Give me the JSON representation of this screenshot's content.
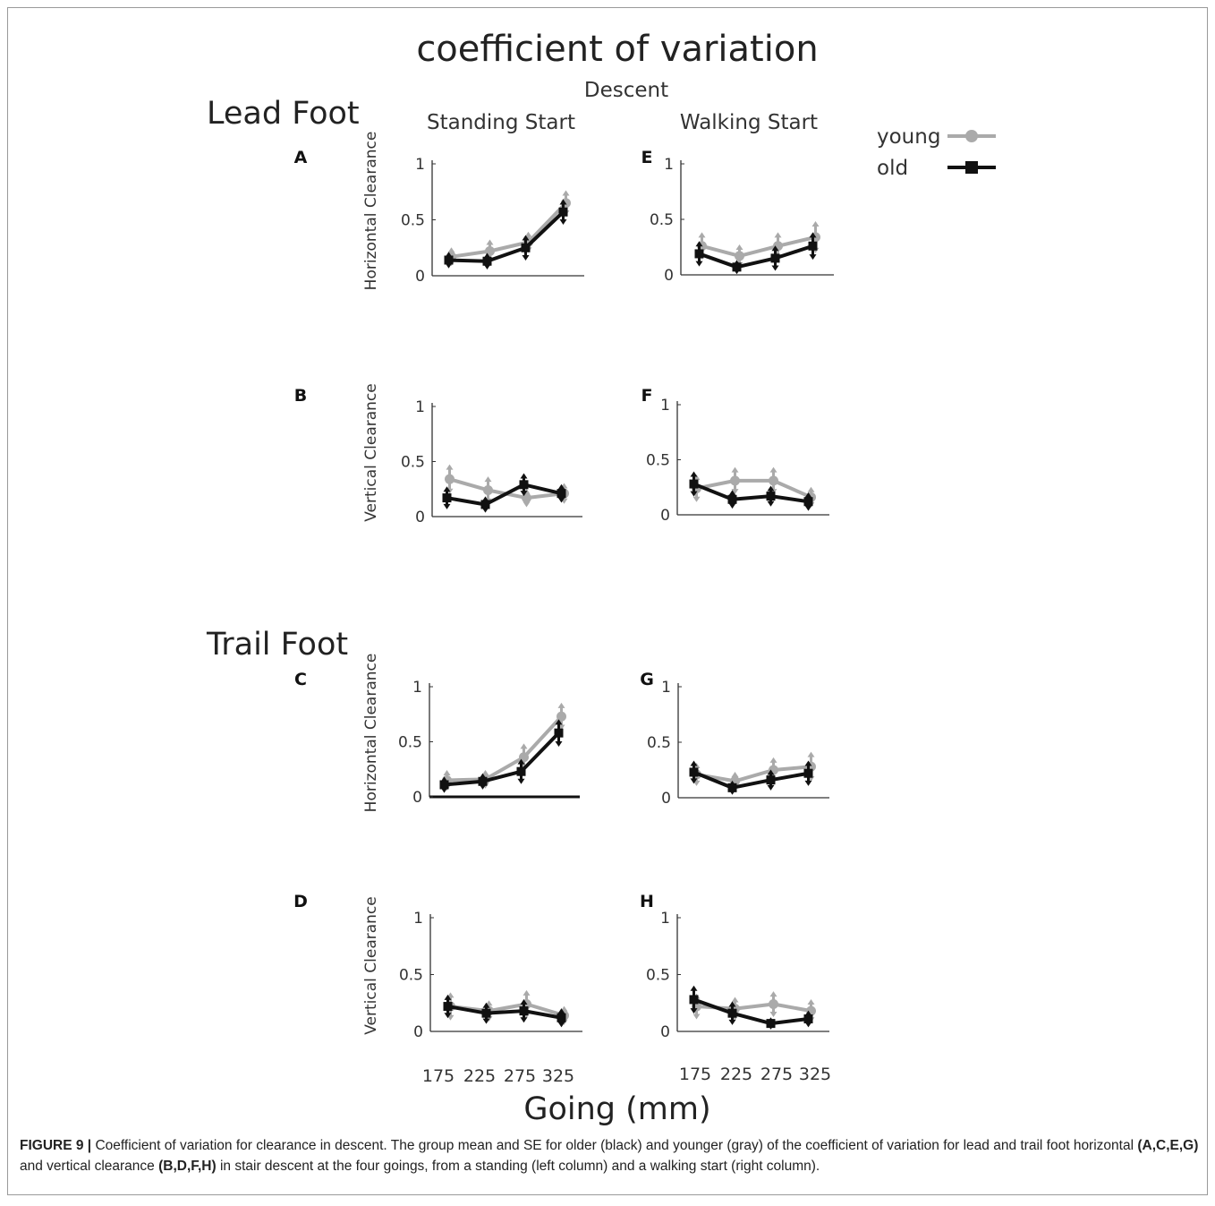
{
  "figure": {
    "main_title": "coefficient of variation",
    "condition": "Descent",
    "column_titles": [
      "Standing Start",
      "Walking Start"
    ],
    "section_titles": [
      "Lead Foot",
      "Trail Foot"
    ],
    "x_axis_label": "Going (mm)",
    "x_tick_labels": [
      "175",
      "225",
      "275",
      "325"
    ],
    "legend": {
      "young": "young",
      "old": "old"
    }
  },
  "colors": {
    "young": "#aaaaaa",
    "old": "#111111",
    "axis": "#333333"
  },
  "caption": {
    "figure_label": "FIGURE 9 |",
    "text_1": " Coefficient of variation for clearance in descent. The group mean and SE for older (black) and younger (gray) of the coefficient of variation for lead and trail foot horizontal ",
    "bold_1": "(A,C,E,G)",
    "text_2": " and vertical clearance ",
    "bold_2": "(B,D,F,H)",
    "text_3": " in stair descent at the four goings, from a standing (left column) and a walking start (right column)."
  },
  "chart_data": [
    {
      "panel": "A",
      "type": "line",
      "ylabel": "Horizontal Clearance",
      "x": [
        175,
        225,
        275,
        325
      ],
      "ylim": [
        0,
        1
      ],
      "yticks": [
        "0",
        "0.5",
        "1"
      ],
      "series": [
        {
          "name": "young",
          "values": [
            0.17,
            0.22,
            0.3,
            0.65
          ],
          "se": [
            0.06,
            0.08,
            0.07,
            0.09
          ]
        },
        {
          "name": "old",
          "values": [
            0.14,
            0.13,
            0.25,
            0.57
          ],
          "se": [
            0.05,
            0.05,
            0.09,
            0.09
          ]
        }
      ]
    },
    {
      "panel": "B",
      "type": "line",
      "ylabel": "Vertical Clearance",
      "x": [
        175,
        225,
        275,
        325
      ],
      "ylim": [
        0,
        1
      ],
      "yticks": [
        "0",
        "0.5",
        "1"
      ],
      "series": [
        {
          "name": "young",
          "values": [
            0.34,
            0.24,
            0.17,
            0.21
          ],
          "se": [
            0.11,
            0.1,
            0.06,
            0.07
          ]
        },
        {
          "name": "old",
          "values": [
            0.17,
            0.11,
            0.29,
            0.21
          ],
          "se": [
            0.08,
            0.05,
            0.08,
            0.06
          ]
        }
      ]
    },
    {
      "panel": "C",
      "type": "line",
      "ylabel": "Horizontal Clearance",
      "x": [
        175,
        225,
        275,
        325
      ],
      "ylim": [
        0,
        1
      ],
      "yticks": [
        "0",
        "0.5",
        "1"
      ],
      "series": [
        {
          "name": "young",
          "values": [
            0.15,
            0.16,
            0.36,
            0.73
          ],
          "se": [
            0.07,
            0.06,
            0.1,
            0.1
          ]
        },
        {
          "name": "old",
          "values": [
            0.11,
            0.14,
            0.23,
            0.58
          ],
          "se": [
            0.05,
            0.05,
            0.09,
            0.1
          ]
        }
      ]
    },
    {
      "panel": "D",
      "type": "line",
      "ylabel": "Vertical Clearance",
      "x": [
        175,
        225,
        275,
        325
      ],
      "ylim": [
        0,
        1
      ],
      "yticks": [
        "0",
        "0.5",
        "1"
      ],
      "series": [
        {
          "name": "young",
          "values": [
            0.22,
            0.18,
            0.24,
            0.14
          ],
          "se": [
            0.1,
            0.07,
            0.1,
            0.06
          ]
        },
        {
          "name": "old",
          "values": [
            0.22,
            0.16,
            0.18,
            0.12
          ],
          "se": [
            0.08,
            0.07,
            0.08,
            0.06
          ]
        }
      ]
    },
    {
      "panel": "E",
      "type": "line",
      "ylabel": "",
      "x": [
        175,
        225,
        275,
        325
      ],
      "ylim": [
        0,
        1
      ],
      "yticks": [
        "0",
        "0.5",
        "1"
      ],
      "series": [
        {
          "name": "young",
          "values": [
            0.26,
            0.17,
            0.26,
            0.34
          ],
          "se": [
            0.1,
            0.08,
            0.1,
            0.12
          ]
        },
        {
          "name": "old",
          "values": [
            0.19,
            0.07,
            0.15,
            0.26
          ],
          "se": [
            0.09,
            0.04,
            0.09,
            0.1
          ]
        }
      ]
    },
    {
      "panel": "F",
      "type": "line",
      "ylabel": "",
      "x": [
        175,
        225,
        275,
        325
      ],
      "ylim": [
        0,
        1
      ],
      "yticks": [
        "0",
        "0.5",
        "1"
      ],
      "series": [
        {
          "name": "young",
          "values": [
            0.24,
            0.31,
            0.31,
            0.16
          ],
          "se": [
            0.1,
            0.1,
            0.1,
            0.07
          ]
        },
        {
          "name": "old",
          "values": [
            0.28,
            0.14,
            0.17,
            0.12
          ],
          "se": [
            0.09,
            0.06,
            0.07,
            0.06
          ]
        }
      ]
    },
    {
      "panel": "G",
      "type": "line",
      "ylabel": "",
      "x": [
        175,
        225,
        275,
        325
      ],
      "ylim": [
        0,
        1
      ],
      "yticks": [
        "0",
        "0.5",
        "1"
      ],
      "series": [
        {
          "name": "young",
          "values": [
            0.21,
            0.15,
            0.25,
            0.28
          ],
          "se": [
            0.08,
            0.06,
            0.09,
            0.11
          ]
        },
        {
          "name": "old",
          "values": [
            0.23,
            0.09,
            0.16,
            0.22
          ],
          "se": [
            0.08,
            0.04,
            0.07,
            0.09
          ]
        }
      ]
    },
    {
      "panel": "H",
      "type": "line",
      "ylabel": "",
      "x": [
        175,
        225,
        275,
        325
      ],
      "ylim": [
        0,
        1
      ],
      "yticks": [
        "0",
        "0.5",
        "1"
      ],
      "series": [
        {
          "name": "young",
          "values": [
            0.22,
            0.2,
            0.24,
            0.18
          ],
          "se": [
            0.09,
            0.08,
            0.09,
            0.08
          ]
        },
        {
          "name": "old",
          "values": [
            0.28,
            0.16,
            0.07,
            0.11
          ],
          "se": [
            0.1,
            0.08,
            0.03,
            0.05
          ]
        }
      ]
    }
  ]
}
